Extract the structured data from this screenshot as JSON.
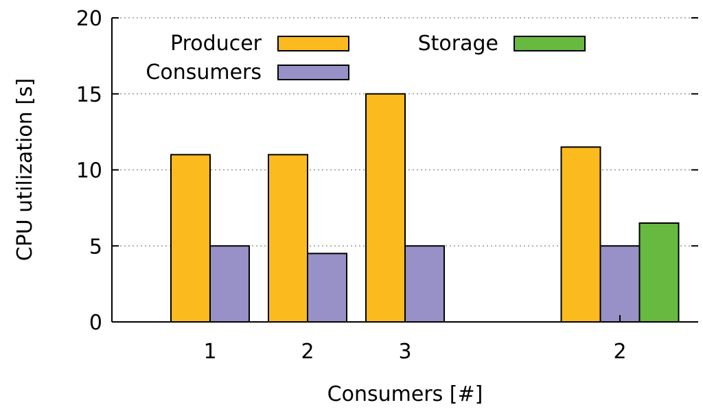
{
  "chart_data": {
    "type": "bar",
    "ylabel": "CPU utilization [s]",
    "xlabel": "Consumers [#]",
    "ylim": [
      0,
      20
    ],
    "yticks": [
      0,
      5,
      10,
      15,
      20
    ],
    "grid": true,
    "legend_placement": "top-left",
    "categories": [
      "1",
      "2",
      "3",
      "2"
    ],
    "series": [
      {
        "name": "Producer",
        "color": "#fbbb1e",
        "values": [
          11,
          11,
          15,
          11.5
        ]
      },
      {
        "name": "Consumers",
        "color": "#9791c7",
        "values": [
          5,
          4.5,
          5,
          5
        ]
      },
      {
        "name": "Storage",
        "color": "#68b93f",
        "values": [
          null,
          null,
          null,
          6.5
        ]
      }
    ]
  }
}
